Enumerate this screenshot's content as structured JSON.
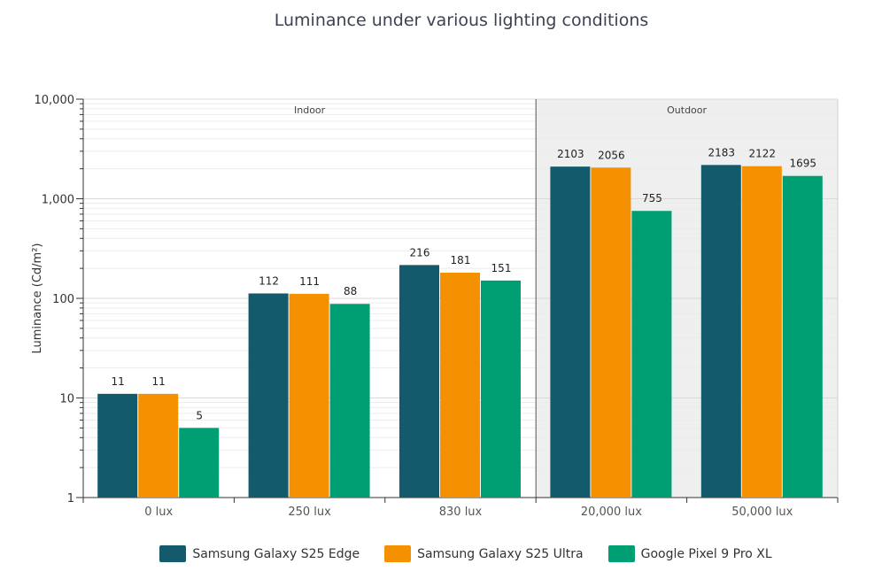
{
  "chart_data": {
    "type": "bar",
    "title": "Luminance under various lighting conditions",
    "ylabel": "Luminance (Cd/m²)",
    "xlabel": "",
    "yscale": "log",
    "ylim": [
      1,
      10000
    ],
    "yticks": [
      {
        "value": 1,
        "label": "1"
      },
      {
        "value": 10,
        "label": "10"
      },
      {
        "value": 100,
        "label": "100"
      },
      {
        "value": 1000,
        "label": "1,000"
      },
      {
        "value": 10000,
        "label": "10,000"
      }
    ],
    "categories": [
      "0 lux",
      "250 lux",
      "830 lux",
      "20,000 lux",
      "50,000 lux"
    ],
    "groups": [
      {
        "label": "Indoor",
        "categories": [
          "0 lux",
          "250 lux",
          "830 lux"
        ],
        "shaded": false,
        "color": "#ffffff"
      },
      {
        "label": "Outdoor",
        "categories": [
          "20,000 lux",
          "50,000 lux"
        ],
        "shaded": true,
        "color": "#efefef"
      }
    ],
    "series": [
      {
        "name": "Samsung Galaxy S25 Edge",
        "color": "#135b6c",
        "values": [
          11,
          112,
          216,
          2103,
          2183
        ]
      },
      {
        "name": "Samsung Galaxy S25 Ultra",
        "color": "#f59100",
        "values": [
          11,
          111,
          181,
          2056,
          2122
        ]
      },
      {
        "name": "Google Pixel 9 Pro XL",
        "color": "#009e73",
        "values": [
          5,
          88,
          151,
          755,
          1695
        ]
      }
    ],
    "legend_position": "bottom",
    "grid": true
  }
}
